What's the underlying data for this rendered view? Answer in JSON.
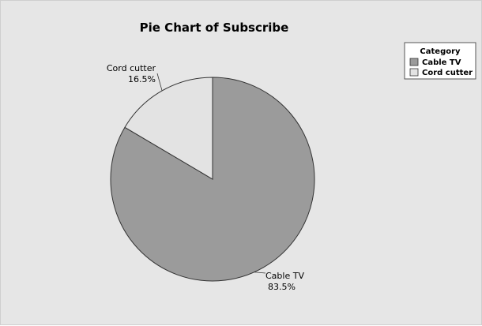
{
  "chart_data": {
    "type": "pie",
    "title": "Pie Chart of Subscribe",
    "slices": [
      {
        "name": "Cable TV",
        "value": 83.5,
        "label_pct": "83.5%",
        "color": "#9b9b9b"
      },
      {
        "name": "Cord cutter",
        "value": 16.5,
        "label_pct": "16.5%",
        "color": "#e3e3e3"
      }
    ],
    "legend": {
      "title": "Category",
      "placement": "top-right",
      "items": [
        {
          "label": "Cable TV",
          "color": "#9b9b9b"
        },
        {
          "label": "Cord cutter",
          "color": "#e3e3e3"
        }
      ]
    }
  }
}
